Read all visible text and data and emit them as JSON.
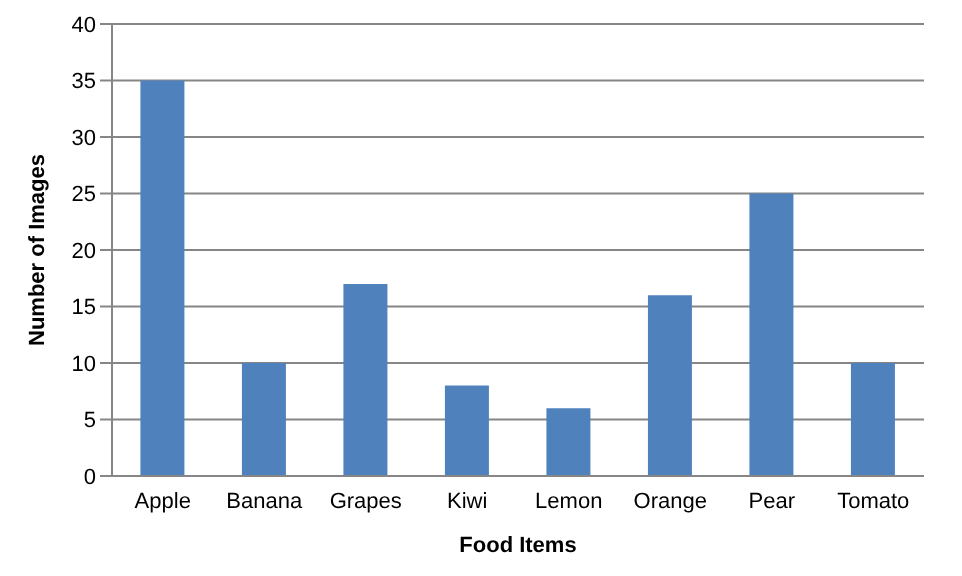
{
  "chart_data": {
    "type": "bar",
    "xlabel": "Food Items",
    "ylabel": "Number of Images",
    "categories": [
      "Apple",
      "Banana",
      "Grapes",
      "Kiwi",
      "Lemon",
      "Orange",
      "Pear",
      "Tomato"
    ],
    "values": [
      35,
      10,
      17,
      8,
      6,
      16,
      25,
      10
    ],
    "color": "#4f81bd",
    "ylim": [
      0,
      40
    ],
    "yticks": [
      0,
      5,
      10,
      15,
      20,
      25,
      30,
      35,
      40
    ],
    "grid": "y"
  }
}
